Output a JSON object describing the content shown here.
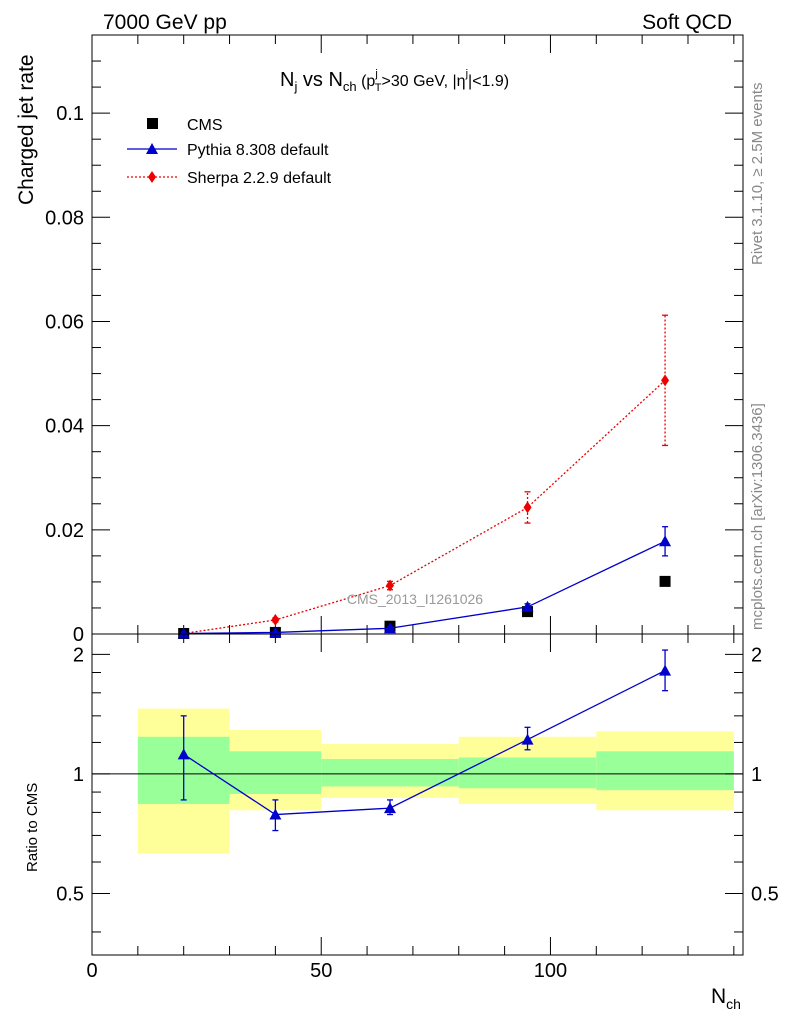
{
  "header": {
    "left": "7000 GeV pp",
    "right": "Soft QCD"
  },
  "side_text": {
    "rivet": "Rivet 3.1.10, ≥ 2.5M events",
    "mcplots": "mcplots.cern.ch [arXiv:1306.3436]"
  },
  "watermark": "CMS_2013_I1261026",
  "title": {
    "main_a": "N",
    "sub_a": "j",
    "main_b": " vs N",
    "sub_b": "ch",
    "cut_a": " (p",
    "cut_sup": "j",
    "cut_sub": "T",
    "cut_b": ">30 GeV, |η",
    "cut_sup2": "j",
    "cut_c": "|<1.9)"
  },
  "colors": {
    "cms": "#000000",
    "pythia": "#0000cc",
    "sherpa": "#ee0000",
    "band_inner": "#99ff99",
    "band_outer": "#ffff99"
  },
  "chart_data": [
    {
      "type": "scatter",
      "panel": "main",
      "ylabel": "Charged jet rate",
      "xlim": [
        0,
        142
      ],
      "ylim": [
        0,
        0.115
      ],
      "y_ticks": [
        0,
        0.02,
        0.04,
        0.06,
        0.08,
        0.1
      ],
      "y_tick_labels": [
        "0",
        "0.02",
        "0.04",
        "0.06",
        "0.08",
        "0.1"
      ],
      "legend_position": "top-left",
      "series": [
        {
          "name": "CMS",
          "marker": "square",
          "x": [
            20,
            40,
            65,
            95,
            125
          ],
          "y": [
            0.0001,
            0.0003,
            0.0015,
            0.0043,
            0.0101
          ]
        },
        {
          "name": "Pythia 8.308 default",
          "marker": "triangle",
          "line": "solid",
          "x": [
            20,
            40,
            65,
            95,
            125
          ],
          "y": [
            0.0001,
            0.0003,
            0.0011,
            0.0052,
            0.0178
          ],
          "yerr": [
            5e-05,
            0.0001,
            0.0003,
            0.0006,
            0.0028
          ]
        },
        {
          "name": "Sherpa 2.2.9 default",
          "marker": "diamond",
          "line": "dotted",
          "x": [
            20,
            40,
            65,
            95,
            125
          ],
          "y": [
            0.0001,
            0.0027,
            0.0093,
            0.0243,
            0.0487
          ],
          "yerr": [
            5e-05,
            0.0004,
            0.0008,
            0.003,
            0.0125
          ]
        }
      ]
    },
    {
      "type": "line",
      "panel": "ratio",
      "xlabel_main": "N",
      "xlabel_sub": "ch",
      "ylabel": "Ratio to CMS",
      "xlim": [
        0,
        142
      ],
      "ylim": [
        0.35,
        2.25
      ],
      "log_y": true,
      "x_ticks": [
        0,
        50,
        100
      ],
      "x_tick_labels": [
        "0",
        "50",
        "100"
      ],
      "y_ticks": [
        0.5,
        1,
        2
      ],
      "y_tick_labels": [
        "0.5",
        "1",
        "2"
      ],
      "reference": 1,
      "bands": [
        {
          "x_low": 10,
          "x_high": 30,
          "inner": [
            0.84,
            1.24
          ],
          "outer": [
            0.63,
            1.46
          ]
        },
        {
          "x_low": 30,
          "x_high": 50,
          "inner": [
            0.89,
            1.14
          ],
          "outer": [
            0.81,
            1.29
          ]
        },
        {
          "x_low": 50,
          "x_high": 80,
          "inner": [
            0.93,
            1.09
          ],
          "outer": [
            0.87,
            1.19
          ]
        },
        {
          "x_low": 80,
          "x_high": 110,
          "inner": [
            0.92,
            1.1
          ],
          "outer": [
            0.84,
            1.24
          ]
        },
        {
          "x_low": 110,
          "x_high": 140,
          "inner": [
            0.91,
            1.14
          ],
          "outer": [
            0.81,
            1.28
          ]
        }
      ],
      "series": [
        {
          "name": "Pythia 8.308 default",
          "x": [
            20,
            40,
            65,
            95,
            125
          ],
          "y": [
            1.12,
            0.79,
            0.82,
            1.22,
            1.82
          ],
          "yerr_low": [
            0.26,
            0.07,
            0.03,
            0.07,
            0.2
          ],
          "yerr_high": [
            0.28,
            0.07,
            0.04,
            0.09,
            0.23
          ]
        }
      ]
    }
  ]
}
